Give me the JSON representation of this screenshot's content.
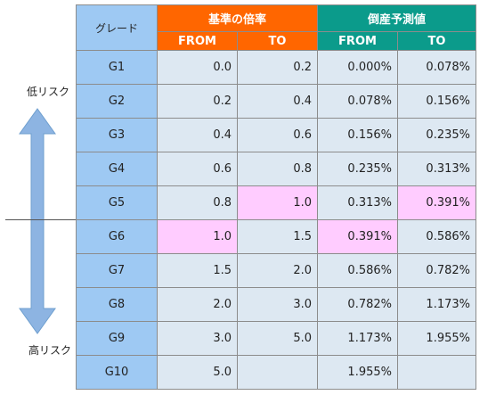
{
  "side": {
    "low_risk": "低リスク",
    "high_risk": "高リスク"
  },
  "header": {
    "grade": "グレード",
    "group_ratio": "基準の倍率",
    "group_pd": "倒産予測値",
    "from": "FROM",
    "to": "TO"
  },
  "colors": {
    "orange_header": "#ff6600",
    "teal_header": "#0b9b8b",
    "grade_blue": "#9ec9f3",
    "cell_bg": "#dde8f2",
    "highlight_pink": "#ffccff",
    "arrow": "#8db4e2"
  },
  "rows": [
    {
      "grade": "G1",
      "ratio_from": "0.0",
      "ratio_to": "0.2",
      "pd_from": "0.000%",
      "pd_to": "0.078%"
    },
    {
      "grade": "G2",
      "ratio_from": "0.2",
      "ratio_to": "0.4",
      "pd_from": "0.078%",
      "pd_to": "0.156%"
    },
    {
      "grade": "G3",
      "ratio_from": "0.4",
      "ratio_to": "0.6",
      "pd_from": "0.156%",
      "pd_to": "0.235%"
    },
    {
      "grade": "G4",
      "ratio_from": "0.6",
      "ratio_to": "0.8",
      "pd_from": "0.235%",
      "pd_to": "0.313%"
    },
    {
      "grade": "G5",
      "ratio_from": "0.8",
      "ratio_to": "1.0",
      "pd_from": "0.313%",
      "pd_to": "0.391%"
    },
    {
      "grade": "G6",
      "ratio_from": "1.0",
      "ratio_to": "1.5",
      "pd_from": "0.391%",
      "pd_to": "0.586%"
    },
    {
      "grade": "G7",
      "ratio_from": "1.5",
      "ratio_to": "2.0",
      "pd_from": "0.586%",
      "pd_to": "0.782%"
    },
    {
      "grade": "G8",
      "ratio_from": "2.0",
      "ratio_to": "3.0",
      "pd_from": "0.782%",
      "pd_to": "1.173%"
    },
    {
      "grade": "G9",
      "ratio_from": "3.0",
      "ratio_to": "5.0",
      "pd_from": "1.173%",
      "pd_to": "1.955%"
    },
    {
      "grade": "G10",
      "ratio_from": "5.0",
      "ratio_to": "",
      "pd_from": "1.955%",
      "pd_to": ""
    }
  ]
}
